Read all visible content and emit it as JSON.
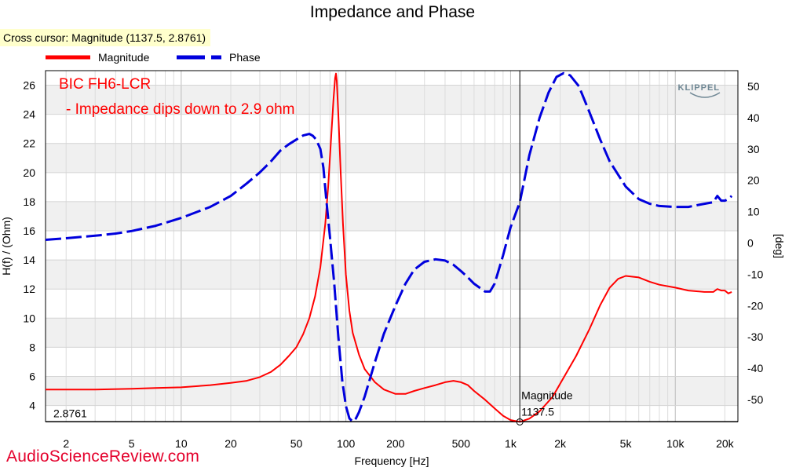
{
  "chart_data": {
    "type": "line",
    "title": "Impedance and Phase",
    "cursor_readout": "Cross cursor: Magnitude (1137.5, 2.8761)",
    "xlabel": "Frequency [Hz]",
    "ylabel_left": "H(f) / (Ohm)",
    "ylabel_right": "[deg]",
    "x_scale": "log",
    "xlim": [
      1.5,
      24000
    ],
    "ylim_left": [
      2.9,
      27
    ],
    "ylim_right": [
      -57,
      55
    ],
    "x_ticks": [
      2,
      5,
      10,
      20,
      50,
      100,
      200,
      500,
      1000,
      2000,
      5000,
      10000,
      20000
    ],
    "x_tick_labels": [
      "2",
      "5",
      "10",
      "20",
      "50",
      "100",
      "200",
      "500",
      "1k",
      "2k",
      "5k",
      "10k",
      "20k"
    ],
    "y_ticks_left": [
      4,
      6,
      8,
      10,
      12,
      14,
      16,
      18,
      20,
      22,
      24,
      26
    ],
    "y_ticks_right": [
      -50,
      -40,
      -30,
      -20,
      -10,
      0,
      10,
      20,
      30,
      40,
      50
    ],
    "grid": true,
    "legend_position": "top-left",
    "annotation_lines": [
      "BIC FH6-LCR",
      "- Impedance dips down to 2.9 ohm"
    ],
    "logo_text": "KLIPPEL",
    "cursor": {
      "x": 1137.5,
      "y": 2.8761,
      "series": "Magnitude",
      "x_label": "1137.5",
      "y_label": "2.8761",
      "name_label": "Magnitude"
    },
    "series": [
      {
        "name": "Magnitude",
        "axis": "left",
        "color": "#ff0000",
        "style": "solid",
        "points": [
          [
            1.5,
            5.1
          ],
          [
            2,
            5.1
          ],
          [
            3,
            5.1
          ],
          [
            5,
            5.15
          ],
          [
            7,
            5.2
          ],
          [
            10,
            5.25
          ],
          [
            15,
            5.4
          ],
          [
            20,
            5.55
          ],
          [
            25,
            5.7
          ],
          [
            30,
            5.95
          ],
          [
            35,
            6.3
          ],
          [
            40,
            6.8
          ],
          [
            45,
            7.4
          ],
          [
            50,
            8.0
          ],
          [
            55,
            8.9
          ],
          [
            60,
            10.0
          ],
          [
            65,
            11.5
          ],
          [
            70,
            13.5
          ],
          [
            75,
            16.5
          ],
          [
            78,
            19.0
          ],
          [
            81,
            22.0
          ],
          [
            84,
            25.0
          ],
          [
            86,
            26.5
          ],
          [
            87,
            26.8
          ],
          [
            88,
            26.3
          ],
          [
            90,
            24.0
          ],
          [
            93,
            20.0
          ],
          [
            96,
            16.5
          ],
          [
            100,
            13.0
          ],
          [
            105,
            10.5
          ],
          [
            110,
            9.0
          ],
          [
            120,
            7.5
          ],
          [
            130,
            6.5
          ],
          [
            150,
            5.6
          ],
          [
            170,
            5.1
          ],
          [
            200,
            4.8
          ],
          [
            230,
            4.8
          ],
          [
            260,
            5.0
          ],
          [
            300,
            5.2
          ],
          [
            350,
            5.4
          ],
          [
            400,
            5.6
          ],
          [
            450,
            5.7
          ],
          [
            500,
            5.6
          ],
          [
            550,
            5.4
          ],
          [
            600,
            5.0
          ],
          [
            700,
            4.4
          ],
          [
            800,
            3.8
          ],
          [
            900,
            3.3
          ],
          [
            1000,
            3.0
          ],
          [
            1137.5,
            2.88
          ],
          [
            1300,
            3.1
          ],
          [
            1500,
            3.6
          ],
          [
            1800,
            4.6
          ],
          [
            2000,
            5.5
          ],
          [
            2500,
            7.4
          ],
          [
            3000,
            9.2
          ],
          [
            3500,
            10.9
          ],
          [
            4000,
            12.1
          ],
          [
            4500,
            12.7
          ],
          [
            5000,
            12.9
          ],
          [
            6000,
            12.8
          ],
          [
            7000,
            12.5
          ],
          [
            8000,
            12.3
          ],
          [
            10000,
            12.1
          ],
          [
            12000,
            11.9
          ],
          [
            15000,
            11.8
          ],
          [
            17000,
            11.8
          ],
          [
            18000,
            12.0
          ],
          [
            19000,
            11.9
          ],
          [
            20000,
            11.9
          ],
          [
            21000,
            11.7
          ],
          [
            22000,
            11.8
          ]
        ]
      },
      {
        "name": "Phase",
        "axis": "right",
        "color": "#0000dd",
        "style": "dashed",
        "points": [
          [
            1.5,
            1
          ],
          [
            2,
            1.5
          ],
          [
            3,
            2.3
          ],
          [
            4,
            3.0
          ],
          [
            5,
            3.8
          ],
          [
            7,
            5.5
          ],
          [
            10,
            8.0
          ],
          [
            15,
            11.5
          ],
          [
            20,
            15
          ],
          [
            25,
            19
          ],
          [
            30,
            22.5
          ],
          [
            35,
            26
          ],
          [
            40,
            29.5
          ],
          [
            45,
            31.5
          ],
          [
            50,
            33
          ],
          [
            55,
            34.3
          ],
          [
            60,
            34.8
          ],
          [
            63,
            34.2
          ],
          [
            66,
            33
          ],
          [
            70,
            30
          ],
          [
            73,
            24
          ],
          [
            76,
            14
          ],
          [
            80,
            2
          ],
          [
            85,
            -13
          ],
          [
            90,
            -30
          ],
          [
            95,
            -44
          ],
          [
            100,
            -52
          ],
          [
            105,
            -56
          ],
          [
            110,
            -57
          ],
          [
            115,
            -56
          ],
          [
            120,
            -54
          ],
          [
            130,
            -49
          ],
          [
            150,
            -38
          ],
          [
            170,
            -29
          ],
          [
            200,
            -20
          ],
          [
            230,
            -13
          ],
          [
            260,
            -8.5
          ],
          [
            300,
            -6
          ],
          [
            350,
            -5.2
          ],
          [
            400,
            -5.6
          ],
          [
            450,
            -7
          ],
          [
            500,
            -9
          ],
          [
            550,
            -11
          ],
          [
            600,
            -13
          ],
          [
            700,
            -15.5
          ],
          [
            750,
            -15.5
          ],
          [
            800,
            -13
          ],
          [
            900,
            -4
          ],
          [
            1000,
            5
          ],
          [
            1137.5,
            13
          ],
          [
            1300,
            28
          ],
          [
            1500,
            40
          ],
          [
            1700,
            48
          ],
          [
            1900,
            53
          ],
          [
            2100,
            54.2
          ],
          [
            2300,
            53.5
          ],
          [
            2600,
            50
          ],
          [
            3000,
            42
          ],
          [
            3500,
            33
          ],
          [
            4000,
            26
          ],
          [
            5000,
            18
          ],
          [
            6000,
            14
          ],
          [
            7000,
            12.5
          ],
          [
            8000,
            11.8
          ],
          [
            10000,
            11.5
          ],
          [
            12000,
            11.5
          ],
          [
            15000,
            12.5
          ],
          [
            17000,
            13
          ],
          [
            18000,
            15
          ],
          [
            19000,
            13.5
          ],
          [
            20000,
            13.5
          ],
          [
            21000,
            14
          ],
          [
            22000,
            15
          ]
        ]
      }
    ]
  },
  "watermark": "AudioScienceReview.com"
}
